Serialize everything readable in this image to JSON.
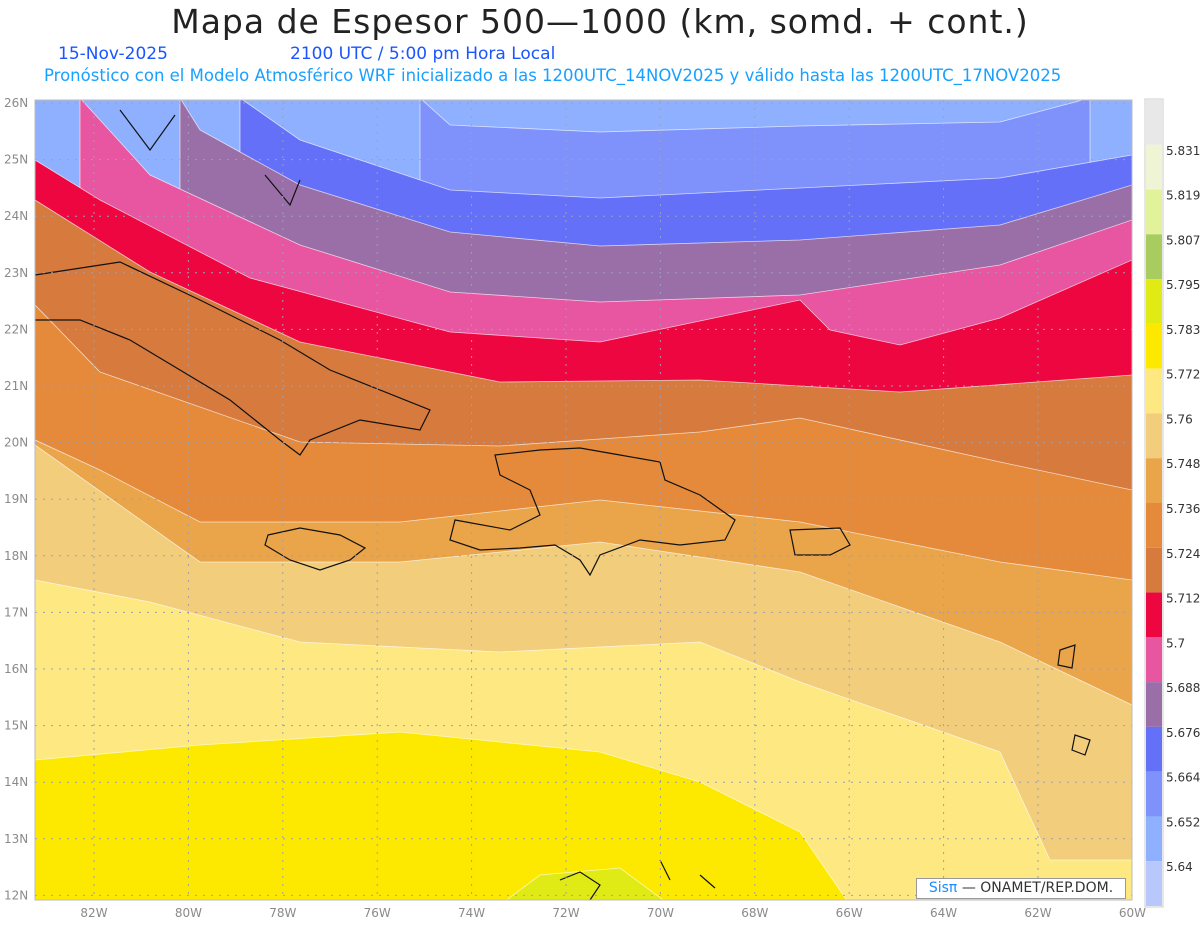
{
  "header": {
    "title": "Mapa de Espesor 500—1000 (km, somd. + cont.)",
    "date": "15-Nov-2025",
    "time": "2100 UTC / 5:00 pm Hora Local",
    "subtitle": "Pronóstico con el Modelo Atmosférico WRF inicializado a las 1200UTC_14NOV2025 y válido hasta las  1200UTC_17NOV2025"
  },
  "map": {
    "lat_labels": [
      "26N",
      "25N",
      "24N",
      "23N",
      "22N",
      "21N",
      "20N",
      "19N",
      "18N",
      "17N",
      "16N",
      "15N",
      "14N",
      "13N",
      "12N"
    ],
    "lon_labels": [
      "82W",
      "80W",
      "78W",
      "76W",
      "74W",
      "72W",
      "70W",
      "68W",
      "66W",
      "64W",
      "62W",
      "60W"
    ],
    "lat_range": [
      12,
      26
    ],
    "lon_range": [
      -83.2,
      -60
    ]
  },
  "colorbar": {
    "labels": [
      "5.831",
      "5.819",
      "5.807",
      "5.795",
      "5.783",
      "5.772",
      "5.76",
      "5.748",
      "5.736",
      "5.724",
      "5.712",
      "5.7",
      "5.688",
      "5.676",
      "5.664",
      "5.652",
      "5.64"
    ],
    "colors": [
      "#e8e8e8",
      "#eef4d4",
      "#e2f29a",
      "#a8cc60",
      "#e0ea14",
      "#fde800",
      "#fee882",
      "#f2cd7c",
      "#eaa44a",
      "#e58a3a",
      "#d67a3e",
      "#ee0640",
      "#e855a0",
      "#9a6fa8",
      "#6470f8",
      "#7f92fc",
      "#8fb0ff",
      "#b8c8fc"
    ]
  },
  "credit": {
    "brand": "Sisπ",
    "text": "—  ONAMET/REP.DOM."
  }
}
